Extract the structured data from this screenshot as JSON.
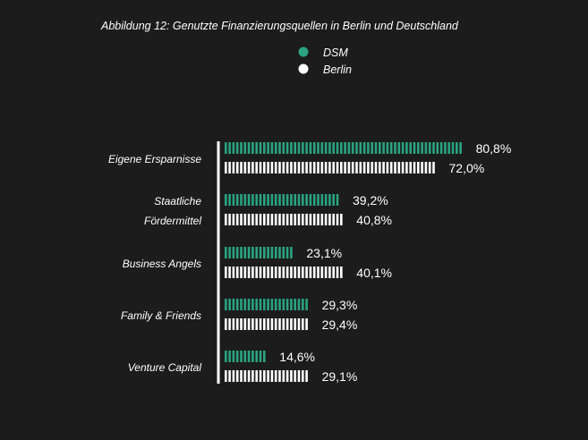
{
  "colors": {
    "background": "#1c1c1c",
    "dsm": "#2aa380",
    "berlin": "#ffffff",
    "axis": "#ffffff"
  },
  "chart_data": {
    "type": "bar",
    "orientation": "horizontal",
    "title": "Abbildung 12: Genutzte Finanzierungsquellen in Berlin und Deutschland",
    "categories": [
      [
        "Eigene Ersparnisse"
      ],
      [
        "Staatliche",
        "Fördermittel"
      ],
      [
        "Business Angels"
      ],
      [
        "Family & Friends"
      ],
      [
        "Venture Capital"
      ]
    ],
    "series": [
      {
        "name": "DSM",
        "color": "#2aa380",
        "values": [
          80.8,
          39.2,
          23.1,
          29.3,
          14.6
        ],
        "labels": [
          "80,8%",
          "39,2%",
          "23,1%",
          "29,3%",
          "14,6%"
        ]
      },
      {
        "name": "Berlin",
        "color": "#ffffff",
        "values": [
          72.0,
          40.8,
          40.1,
          29.4,
          29.1
        ],
        "labels": [
          "72,0%",
          "40,8%",
          "40,1%",
          "29,4%",
          "29,1%"
        ]
      }
    ],
    "legend_position": "top-center",
    "grid": false
  }
}
